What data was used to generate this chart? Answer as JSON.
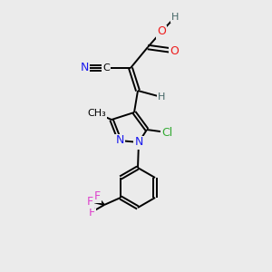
{
  "bg_color": "#ebebeb",
  "colors": {
    "N": "#1a1aee",
    "O": "#ee1a1a",
    "F": "#dd44cc",
    "Cl": "#33aa33",
    "C": "#000000",
    "H": "#446666",
    "bond": "#000000"
  },
  "bond_width": 1.4,
  "font_size": 9.0
}
